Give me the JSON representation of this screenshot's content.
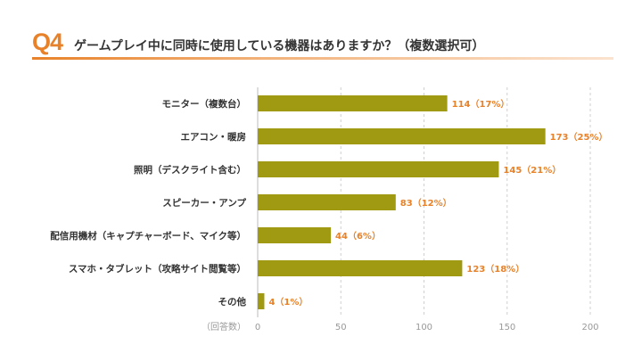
{
  "header": {
    "question_number": "Q4",
    "question_text": "ゲームプレイ中に同時に使用している機器はありますか？（複数選択可）"
  },
  "chart_data": {
    "type": "bar",
    "orientation": "horizontal",
    "categories": [
      "モニター（複数台）",
      "エアコン・暖房",
      "照明（デスクライト含む）",
      "スピーカー・アンプ",
      "配信用機材（キャプチャーボード、マイク等）",
      "スマホ・タブレット（攻略サイト閲覧等）",
      "その他"
    ],
    "values": [
      114,
      173,
      145,
      83,
      44,
      123,
      4
    ],
    "percents": [
      "17%",
      "25%",
      "21%",
      "12%",
      "6%",
      "18%",
      "1%"
    ],
    "value_labels": [
      "114（17%）",
      "173（25%）",
      "145（21%）",
      "83（12%）",
      "44（6%）",
      "123（18%）",
      "4（1%）"
    ],
    "x_unit_label": "（回答数）",
    "xlim": [
      0,
      200
    ],
    "xticks": [
      0,
      50,
      100,
      150,
      200
    ],
    "grid": "vertical dashed",
    "colors": {
      "bar": "#a09a12",
      "value_text": "#e8822a",
      "accent": "#e8822a",
      "grid": "#cfcfcf",
      "axis_text": "#999999"
    }
  }
}
